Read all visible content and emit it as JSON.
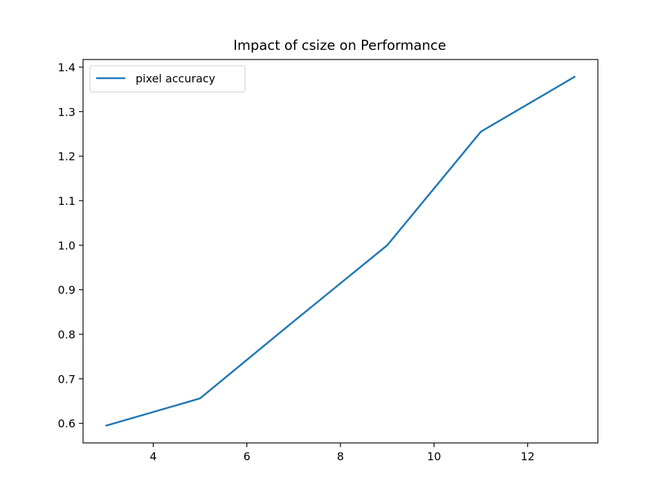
{
  "chart_data": {
    "type": "line",
    "title": "Impact of csize on Performance",
    "xlabel": "",
    "ylabel": "",
    "x": [
      3,
      5,
      7,
      9,
      11,
      13
    ],
    "series": [
      {
        "name": "pixel accuracy",
        "values": [
          0.595,
          0.656,
          0.829,
          1.0,
          1.255,
          1.378
        ],
        "color": "#1f77b4"
      }
    ],
    "xlim": [
      2.5,
      13.5
    ],
    "ylim": [
      0.556,
      1.417
    ],
    "xticks": [
      4,
      6,
      8,
      10,
      12
    ],
    "yticks": [
      0.6,
      0.7,
      0.8,
      0.9,
      1.0,
      1.1,
      1.2,
      1.3,
      1.4
    ],
    "grid": false,
    "legend_position": "upper-left"
  }
}
